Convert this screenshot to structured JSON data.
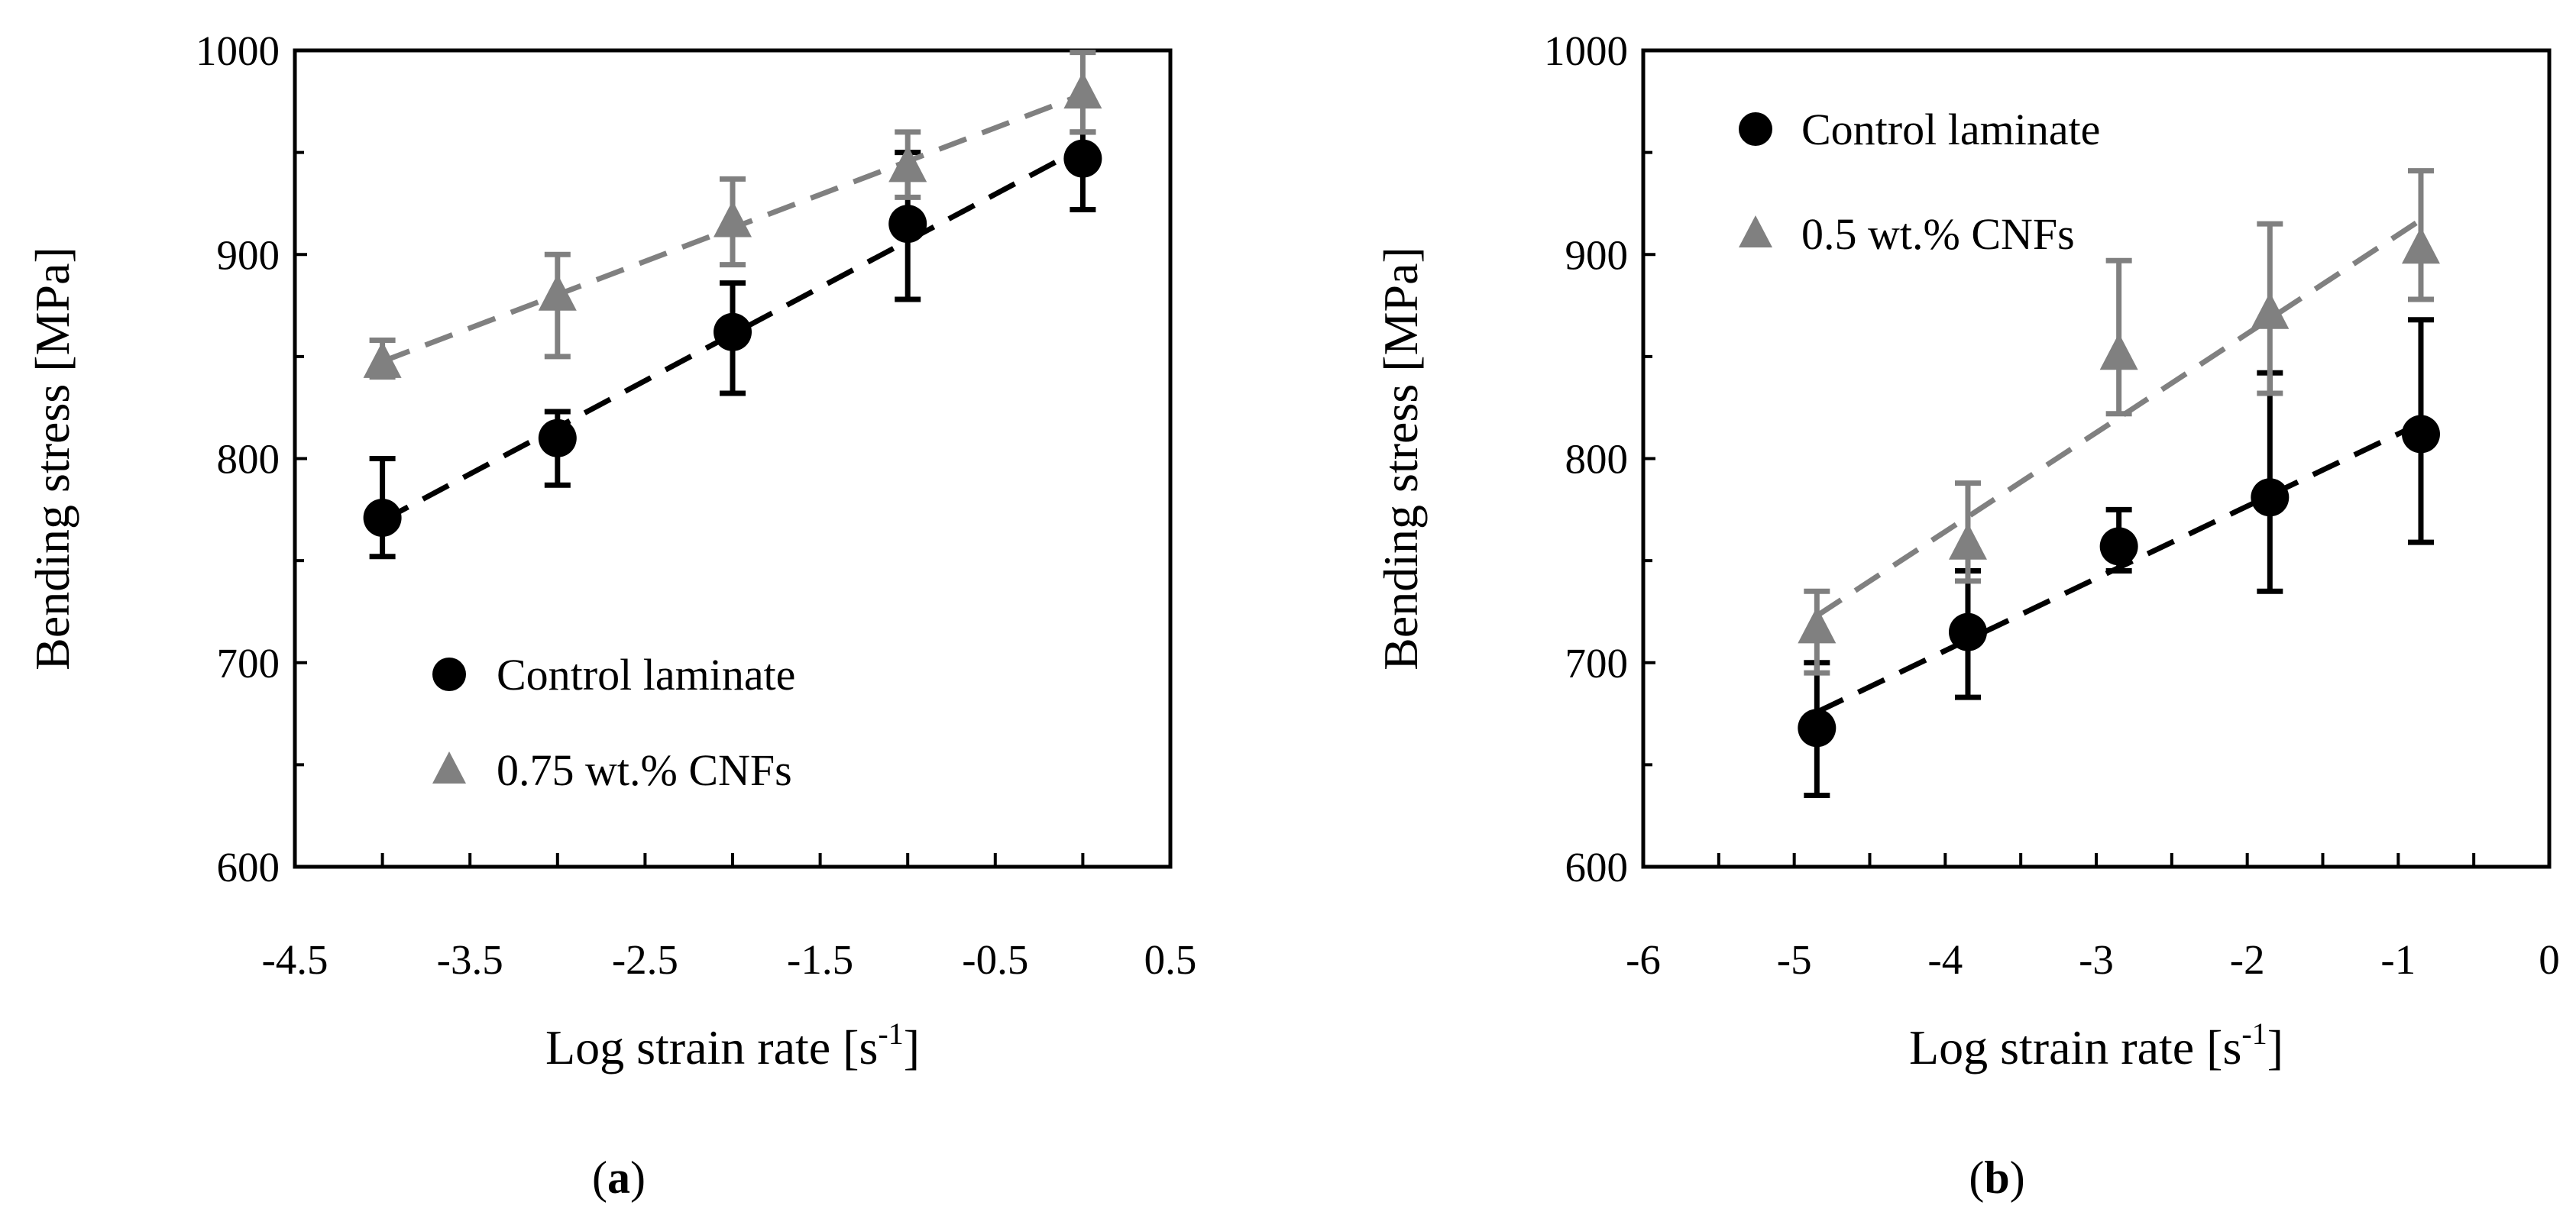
{
  "chart_data": [
    {
      "type": "scatter",
      "panel_label": "a",
      "xlabel": "Log strain rate [s",
      "xlabel_sup": "-1",
      "xlabel_end": "]",
      "ylabel": "Bending stress [MPa]",
      "xlim": [
        -4.5,
        0.5
      ],
      "ylim": [
        600,
        1000
      ],
      "x_ticks": [
        "-4.5",
        "-3.5",
        "-2.5",
        "-1.5",
        "-0.5",
        "0.5"
      ],
      "y_ticks": [
        "600",
        "700",
        "800",
        "900",
        "1000"
      ],
      "legend_position": "bottom-left",
      "series": [
        {
          "name": "Control laminate",
          "marker": "circle",
          "color": "#000000",
          "trendline": true,
          "points": [
            {
              "x": -4,
              "y": 771,
              "err_low": 752,
              "err_high": 800
            },
            {
              "x": -3,
              "y": 810,
              "err_low": 787,
              "err_high": 823
            },
            {
              "x": -2,
              "y": 862,
              "err_low": 832,
              "err_high": 886
            },
            {
              "x": -1,
              "y": 915,
              "err_low": 878,
              "err_high": 950
            },
            {
              "x": 0,
              "y": 947,
              "err_low": 922,
              "err_high": 960
            }
          ]
        },
        {
          "name": "0.75 wt.% CNFs",
          "marker": "triangle",
          "color": "#808080",
          "trendline": true,
          "points": [
            {
              "x": -4,
              "y": 847,
              "err_low": 840,
              "err_high": 858
            },
            {
              "x": -3,
              "y": 880,
              "err_low": 850,
              "err_high": 900
            },
            {
              "x": -2,
              "y": 916,
              "err_low": 895,
              "err_high": 937
            },
            {
              "x": -1,
              "y": 943,
              "err_low": 928,
              "err_high": 960
            },
            {
              "x": 0,
              "y": 979,
              "err_low": 960,
              "err_high": 999
            }
          ]
        }
      ]
    },
    {
      "type": "scatter",
      "panel_label": "b",
      "xlabel": "Log strain rate [s",
      "xlabel_sup": "-1",
      "xlabel_end": "]",
      "ylabel": "Bending stress [MPa]",
      "xlim": [
        -6,
        0
      ],
      "ylim": [
        600,
        1000
      ],
      "x_ticks": [
        "-6",
        "-5",
        "-4",
        "-3",
        "-2",
        "-1",
        "0"
      ],
      "y_ticks": [
        "600",
        "700",
        "800",
        "900",
        "1000"
      ],
      "legend_position": "top-left",
      "series": [
        {
          "name": "Control laminate",
          "marker": "circle",
          "color": "#000000",
          "trendline": true,
          "points": [
            {
              "x": -4.85,
              "y": 668,
              "err_low": 635,
              "err_high": 700
            },
            {
              "x": -3.85,
              "y": 715,
              "err_low": 683,
              "err_high": 745
            },
            {
              "x": -2.85,
              "y": 757,
              "err_low": 745,
              "err_high": 775
            },
            {
              "x": -1.85,
              "y": 781,
              "err_low": 735,
              "err_high": 842
            },
            {
              "x": -0.85,
              "y": 812,
              "err_low": 759,
              "err_high": 868
            }
          ]
        },
        {
          "name": "0.5 wt.% CNFs",
          "marker": "triangle",
          "color": "#808080",
          "trendline": true,
          "points": [
            {
              "x": -4.85,
              "y": 717,
              "err_low": 695,
              "err_high": 735
            },
            {
              "x": -3.85,
              "y": 758,
              "err_low": 740,
              "err_high": 788
            },
            {
              "x": -2.85,
              "y": 851,
              "err_low": 822,
              "err_high": 897
            },
            {
              "x": -1.85,
              "y": 871,
              "err_low": 832,
              "err_high": 915
            },
            {
              "x": -0.85,
              "y": 903,
              "err_low": 878,
              "err_high": 941
            }
          ]
        }
      ]
    }
  ]
}
